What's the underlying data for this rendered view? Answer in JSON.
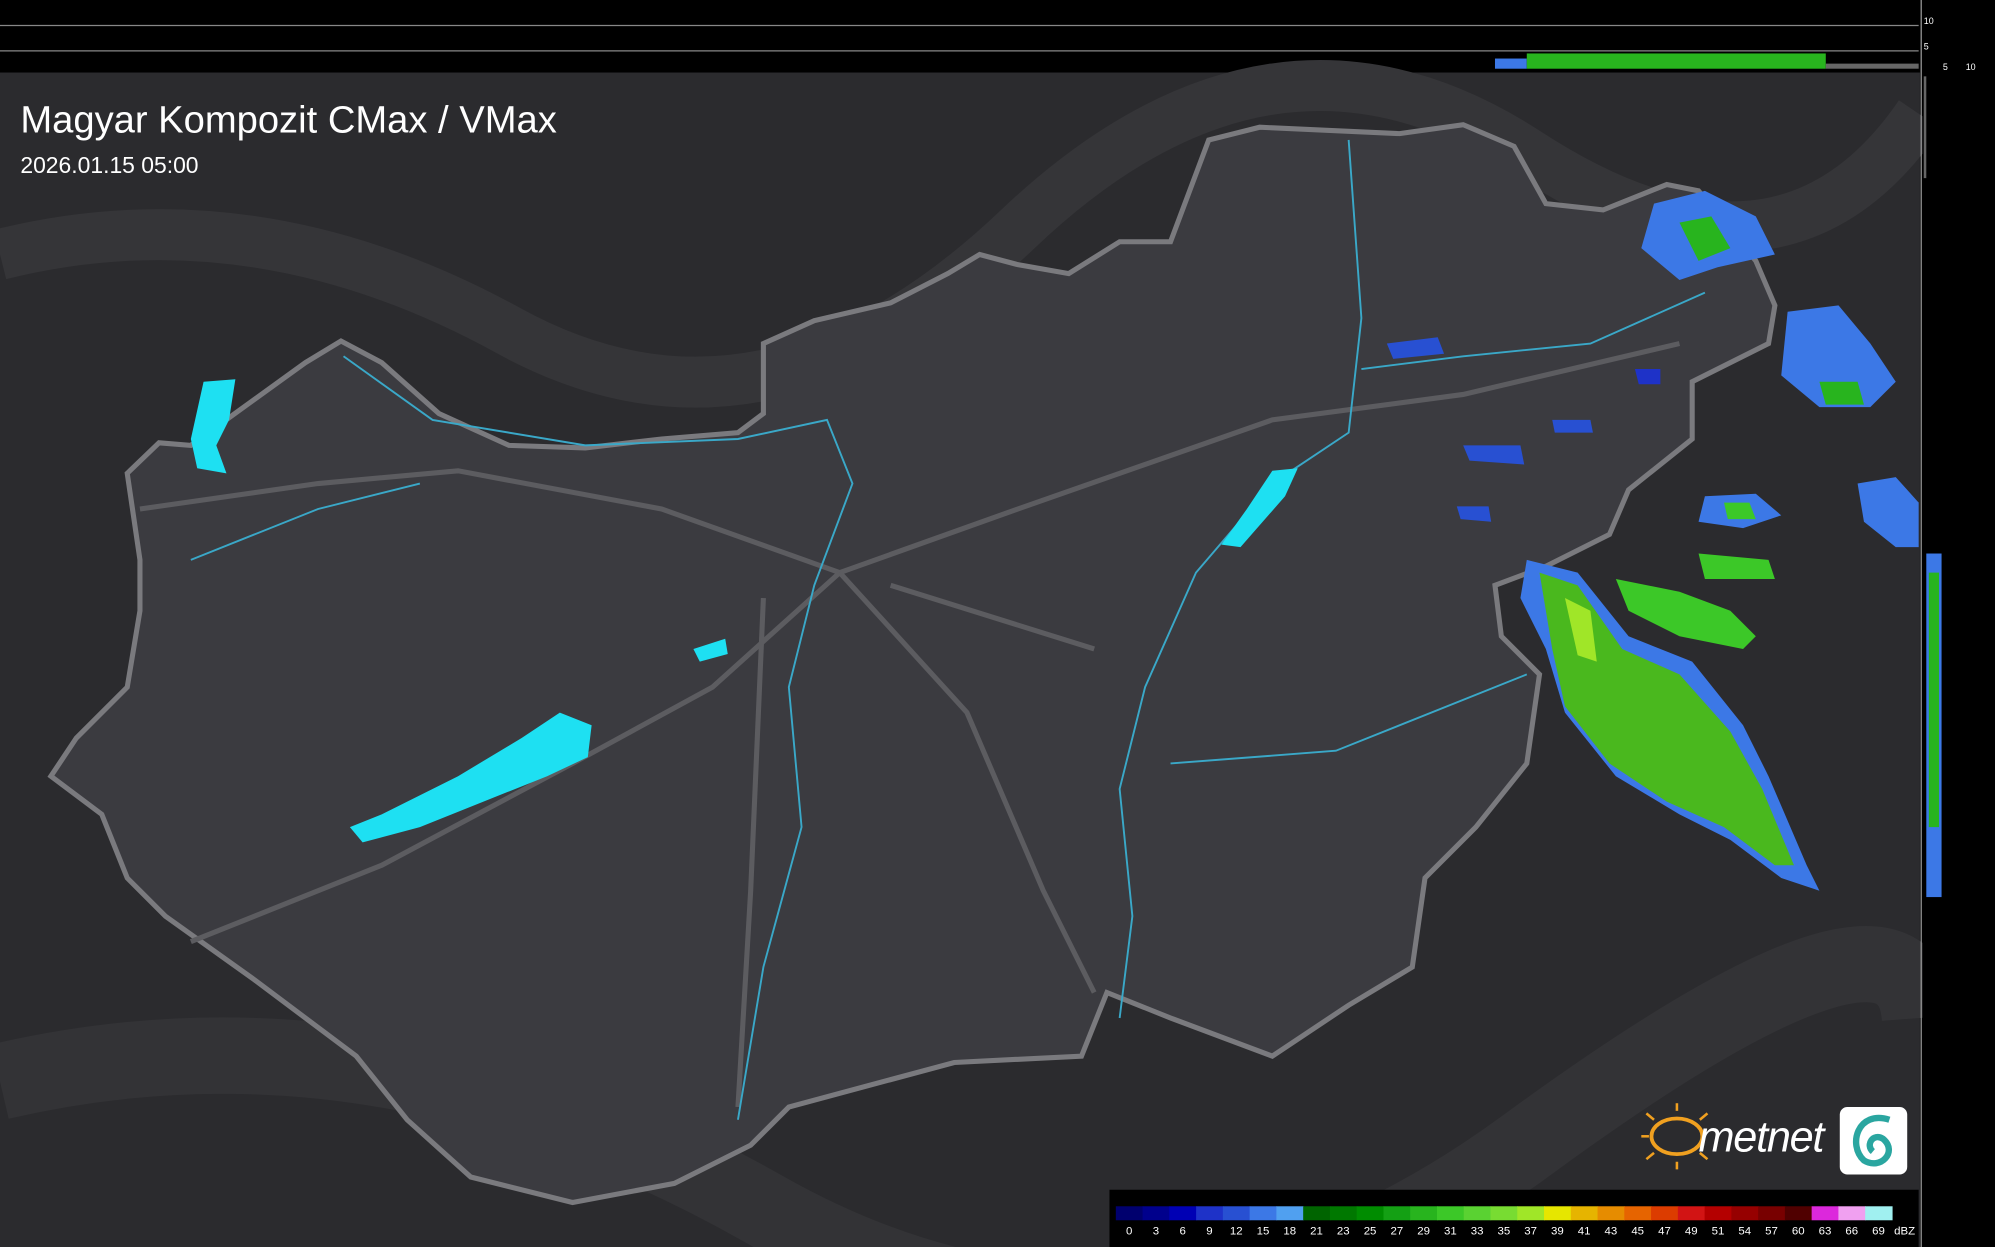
{
  "header": {
    "title": "Magyar Kompozit CMax / VMax",
    "timestamp": "2026.01.15 05:00"
  },
  "logo": {
    "text": "metnet"
  },
  "profile": {
    "top_labels": [
      "10",
      "5"
    ],
    "right_labels": [
      "5",
      "10"
    ]
  },
  "legend": {
    "values": [
      0,
      3,
      6,
      9,
      12,
      15,
      18,
      21,
      23,
      25,
      27,
      29,
      31,
      33,
      35,
      37,
      39,
      41,
      43,
      45,
      47,
      49,
      51,
      54,
      57,
      60,
      63,
      66,
      69
    ],
    "colors": [
      "#00006e",
      "#00008c",
      "#0000b4",
      "#1e32c8",
      "#2850d2",
      "#3c78e6",
      "#50a0f0",
      "#006400",
      "#007800",
      "#008c00",
      "#14a014",
      "#28b41e",
      "#3cc828",
      "#5ad232",
      "#78dc32",
      "#a0e628",
      "#e6e600",
      "#e6b400",
      "#e68c00",
      "#e66400",
      "#dc3c00",
      "#d21414",
      "#b40000",
      "#960000",
      "#780000",
      "#500000",
      "#dc28dc",
      "#f0a0f0",
      "#a0f0f0"
    ],
    "unit": "dBZ"
  }
}
